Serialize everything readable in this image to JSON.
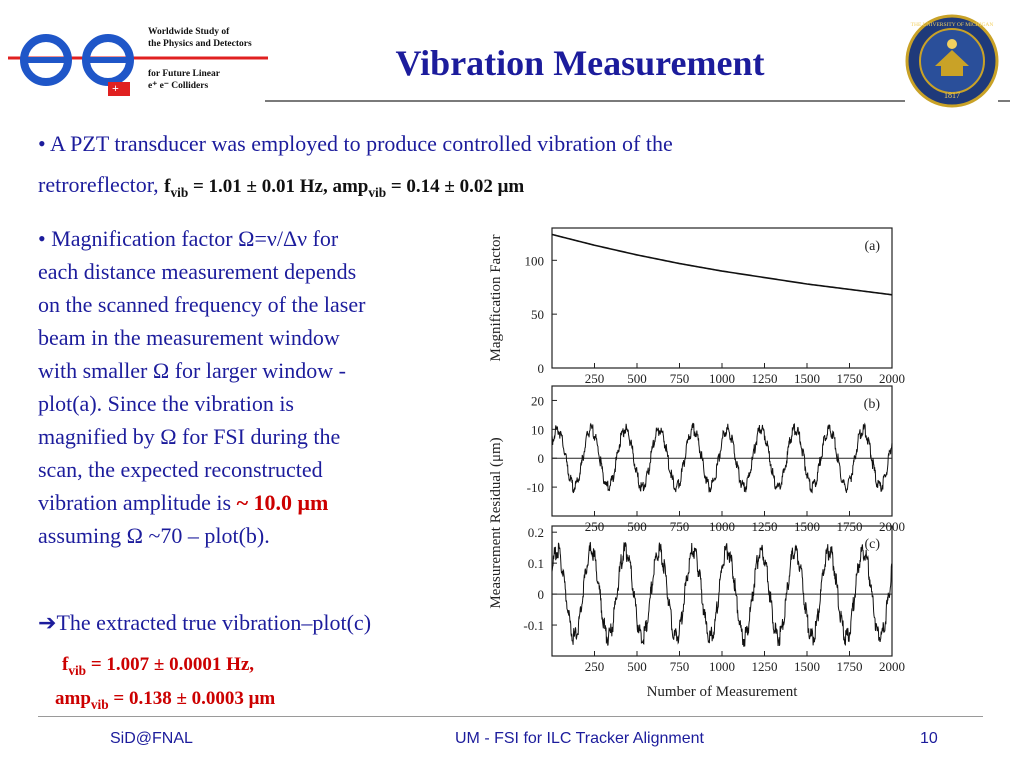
{
  "header": {
    "logo_line1": "Worldwide Study of",
    "logo_line2": "the Physics and Detectors",
    "logo_line3": "for Future Linear",
    "logo_line4": "e⁺ e⁻ Colliders",
    "logo_minus": "−",
    "logo_plus": "+",
    "title": "Vibration Measurement",
    "seal_top": "THE UNIVERSITY OF MICHIGAN",
    "seal_year": "1817"
  },
  "bullets": {
    "b1_line1": "• A PZT transducer was employed to produce controlled vibration of  the",
    "b1_line2": "retroreflector, ",
    "b1_f": "f",
    "b1_sub1": "vib",
    "b1_val1": " = 1.01 ± 0.01 Hz, amp",
    "b1_sub2": "vib",
    "b1_val2": " = 0.14 ± 0.02 μm",
    "b2_lines": [
      "• Magnification factor Ω=ν/Δν for",
      "each  distance measurement depends",
      "on the scanned frequency of the laser",
      "beam in the measurement window",
      "with smaller Ω for larger window -",
      "plot(a). Since the vibration is",
      "magnified by Ω for FSI during the",
      "scan, the expected reconstructed"
    ],
    "b2_line9": "vibration amplitude is  ",
    "b2_red": "~ 10.0 μm",
    "b2_line10": "assuming Ω ~70 – plot(b).",
    "b3_arrow": "➔",
    "b3_line": "The extracted true vibration–plot(c)",
    "b3_f": "f",
    "b3_sub1": "vib",
    "b3_val1": " = 1.007 ± 0.0001 Hz,",
    "b3_amp": "amp",
    "b3_sub2": "vib",
    "b3_val2": " = 0.138 ± 0.0003 μm"
  },
  "footer": {
    "left": "SiD@FNAL",
    "center": "UM - FSI for ILC Tracker Alignment",
    "page": "10"
  },
  "colors": {
    "title": "#1c1c9c",
    "accent_red": "#cc0000",
    "logo_blue": "#1f56c8",
    "logo_red": "#e02020"
  },
  "chart_data": [
    {
      "type": "line",
      "panel": "(a)",
      "ylabel": "Magnification Factor",
      "ylim": [
        0,
        130
      ],
      "yticks": [
        0,
        50,
        100
      ],
      "xlim": [
        0,
        2000
      ],
      "xticks": [
        250,
        500,
        750,
        1000,
        1250,
        1500,
        1750,
        2000
      ],
      "x": [
        0,
        250,
        500,
        750,
        1000,
        1250,
        1500,
        1750,
        2000
      ],
      "values": [
        124,
        114,
        105,
        97,
        90,
        84,
        78,
        73,
        68
      ]
    },
    {
      "type": "line",
      "panel": "(b)",
      "ylim": [
        -20,
        25
      ],
      "yticks": [
        -10,
        0,
        10,
        20
      ],
      "xlim": [
        0,
        2000
      ],
      "xticks": [
        250,
        500,
        750,
        1000,
        1250,
        1500,
        1750,
        2000
      ],
      "amplitude": 10,
      "cycles": 10,
      "grid": "zero-line"
    },
    {
      "type": "line",
      "panel": "(c)",
      "ylim": [
        -0.2,
        0.22
      ],
      "yticks": [
        -0.1,
        0,
        0.1,
        0.2
      ],
      "xlim": [
        0,
        2000
      ],
      "xticks": [
        250,
        500,
        750,
        1000,
        1250,
        1500,
        1750,
        2000
      ],
      "amplitude": 0.14,
      "cycles": 10,
      "grid": "zero-line"
    }
  ],
  "chart_shared": {
    "ylabel": "Measurement Residual (μm)",
    "xlabel": "Number of Measurement"
  }
}
